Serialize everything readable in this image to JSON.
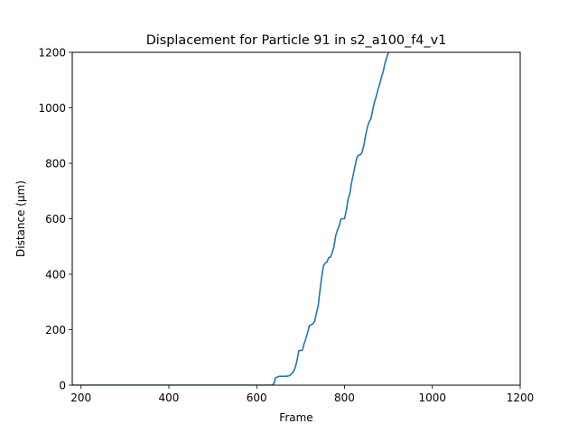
{
  "chart_data": {
    "type": "line",
    "title": "Displacement for Particle 91 in s2_a100_f4_v1",
    "xlabel": "Frame",
    "ylabel": "Distance (µm)",
    "xlim": [
      180,
      1200
    ],
    "ylim": [
      0,
      1200
    ],
    "xticks": [
      200,
      400,
      600,
      800,
      1000,
      1200
    ],
    "yticks": [
      0,
      200,
      400,
      600,
      800,
      1000,
      1200
    ],
    "grid": false,
    "line_color": "#1f77b4",
    "series": [
      {
        "x": [
          180,
          600,
          636,
          640,
          642,
          645,
          652,
          660,
          668,
          676,
          680,
          684,
          688,
          692,
          696,
          700,
          704,
          708,
          712,
          716,
          720,
          724,
          728,
          732,
          736,
          740,
          744,
          748,
          752,
          756,
          760,
          764,
          768,
          772,
          776,
          780,
          784,
          788,
          792,
          796,
          800,
          804,
          808,
          812,
          816,
          820,
          824,
          828,
          832,
          836,
          840,
          844,
          848,
          852,
          856,
          860,
          864,
          868,
          872,
          876,
          880,
          884,
          888,
          892,
          896,
          900,
          904,
          908,
          912,
          916,
          920,
          924,
          928,
          932,
          936,
          940
        ],
        "y": [
          0,
          0,
          0,
          8,
          25,
          28,
          32,
          32,
          32,
          35,
          42,
          50,
          65,
          90,
          125,
          125,
          126,
          150,
          168,
          190,
          215,
          217,
          222,
          230,
          260,
          285,
          340,
          390,
          430,
          440,
          444,
          460,
          462,
          478,
          500,
          540,
          560,
          575,
          600,
          600,
          600,
          630,
          670,
          690,
          730,
          760,
          790,
          820,
          830,
          830,
          840,
          865,
          900,
          930,
          950,
          960,
          990,
          1020,
          1040,
          1065,
          1085,
          1110,
          1130,
          1160,
          1180,
          1200,
          1210,
          1210,
          1210,
          1210,
          1210,
          1210,
          1210,
          1210,
          1210,
          1210
        ]
      }
    ]
  }
}
